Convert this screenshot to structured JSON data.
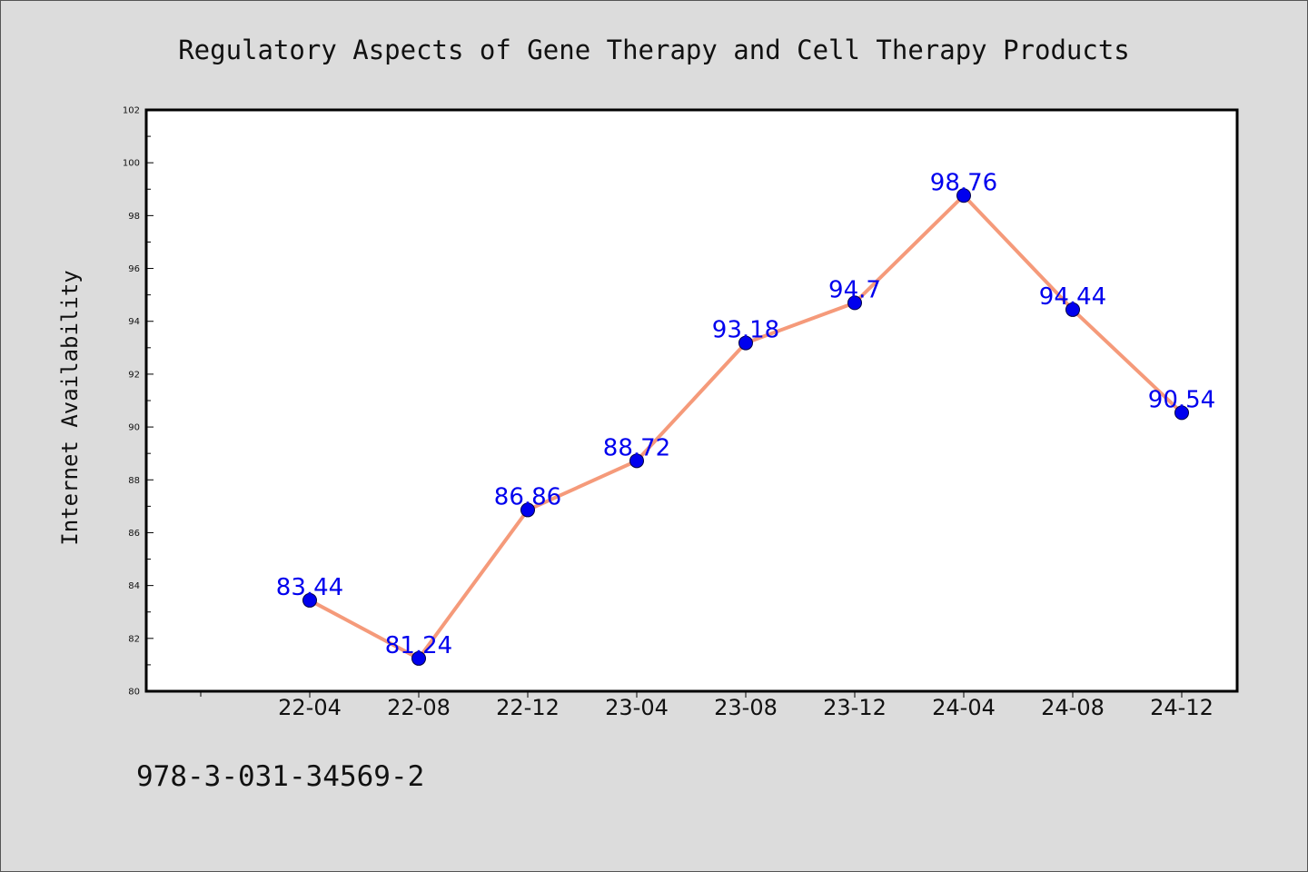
{
  "footer_code": "978-3-031-34569-2",
  "colors": {
    "background": "#dcdcdc",
    "plot_background": "#ffffff",
    "line": "#f59a7a",
    "marker": "#0000ee",
    "data_label": "#0000ee"
  },
  "chart_data": {
    "type": "line",
    "title": "Regulatory Aspects of Gene Therapy and Cell Therapy Products",
    "xlabel": "",
    "ylabel": "Internet Availability",
    "categories": [
      "22-04",
      "22-08",
      "22-12",
      "23-04",
      "23-08",
      "23-12",
      "24-04",
      "24-08",
      "24-12"
    ],
    "series": [
      {
        "values": [
          83.44,
          81.24,
          86.86,
          88.72,
          93.18,
          94.7,
          98.76,
          94.44,
          90.54
        ]
      }
    ],
    "data_labels": [
      "83.44",
      "81.24",
      "86.86",
      "88.72",
      "93.18",
      "94.7",
      "98.76",
      "94.44",
      "90.54"
    ],
    "ylim": [
      80,
      102
    ],
    "yticks": [
      80,
      82,
      84,
      86,
      88,
      90,
      92,
      94,
      96,
      98,
      100,
      102
    ],
    "grid": false,
    "legend": "none"
  }
}
